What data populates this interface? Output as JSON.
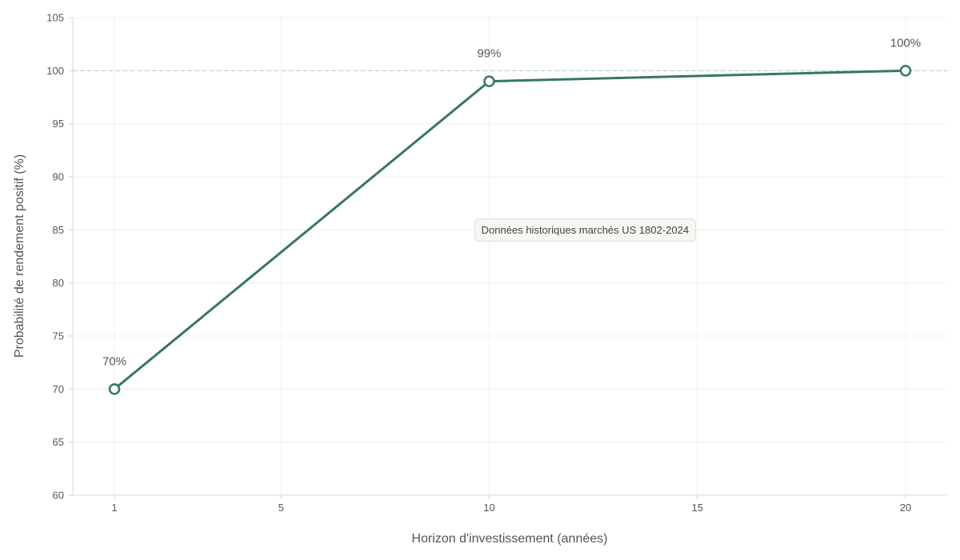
{
  "chart_data": {
    "type": "line",
    "xlabel": "Horizon d'investissement (années)",
    "ylabel": "Probabilité de rendement positif (%)",
    "xlim": [
      0,
      21
    ],
    "ylim": [
      60,
      105
    ],
    "x_ticks": [
      1,
      5,
      10,
      15,
      20
    ],
    "y_ticks": [
      60,
      65,
      70,
      75,
      80,
      85,
      90,
      95,
      100,
      105
    ],
    "grid": true,
    "reference_line": {
      "y": 100,
      "style": "dashed"
    },
    "series": [
      {
        "x": [
          1,
          10,
          20
        ],
        "values": [
          70,
          99,
          100
        ],
        "labels": [
          "70%",
          "99%",
          "100%"
        ],
        "color": "#357a5a"
      }
    ],
    "annotation": {
      "text": "Données historiques marchés US 1802-2024",
      "x": 12.3,
      "y": 85
    }
  }
}
